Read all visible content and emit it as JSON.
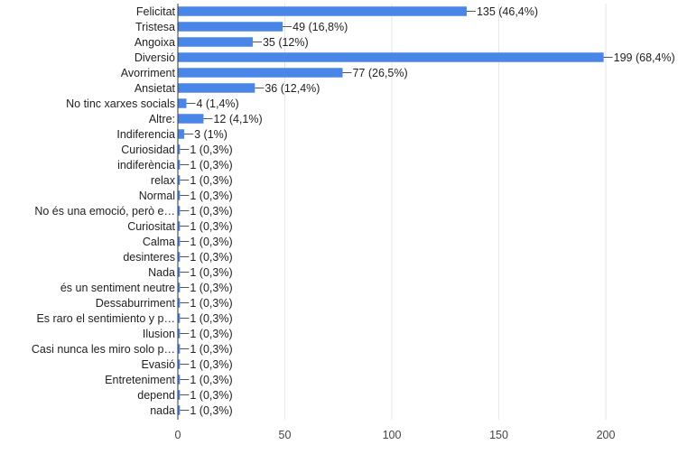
{
  "chart_data": {
    "type": "bar",
    "orientation": "horizontal",
    "categories": [
      "Felicitat",
      "Tristesa",
      "Angoixa",
      "Diversió",
      "Avorriment",
      "Ansietat",
      "No tinc xarxes socials",
      "Altre:",
      "Indiferencia",
      "Curiosidad",
      "indiferència",
      "relax",
      "Normal",
      "No és una emoció, però e…",
      "Curiositat",
      "Calma",
      "desinteres",
      "Nada",
      "és un sentiment neutre",
      "Dessaburriment",
      "Es raro el sentimiento y p…",
      "Ilusion",
      "Casi nunca les miro solo p…",
      "Evasió",
      "Entreteniment",
      "depend",
      "nada"
    ],
    "values": [
      135,
      49,
      35,
      199,
      77,
      36,
      4,
      12,
      3,
      1,
      1,
      1,
      1,
      1,
      1,
      1,
      1,
      1,
      1,
      1,
      1,
      1,
      1,
      1,
      1,
      1,
      1
    ],
    "data_labels": [
      "135 (46,4%)",
      "49 (16,8%)",
      "35 (12%)",
      "199 (68,4%)",
      "77 (26,5%)",
      "36 (12,4%)",
      "4 (1,4%)",
      "12 (4,1%)",
      "3 (1%)",
      "1 (0,3%)",
      "1 (0,3%)",
      "1 (0,3%)",
      "1 (0,3%)",
      "1 (0,3%)",
      "1 (0,3%)",
      "1 (0,3%)",
      "1 (0,3%)",
      "1 (0,3%)",
      "1 (0,3%)",
      "1 (0,3%)",
      "1 (0,3%)",
      "1 (0,3%)",
      "1 (0,3%)",
      "1 (0,3%)",
      "1 (0,3%)",
      "1 (0,3%)",
      "1 (0,3%)"
    ],
    "xlim": [
      0,
      200
    ],
    "xticks": [
      0,
      50,
      100,
      150,
      200
    ],
    "xtick_labels": [
      "0",
      "50",
      "100",
      "150",
      "200"
    ],
    "grid": true,
    "title": "",
    "xlabel": "",
    "ylabel": "",
    "colors": {
      "bar": "#4a86e8",
      "grid": "#e6e6e6",
      "axis": "#333333",
      "text": "#222222"
    }
  }
}
